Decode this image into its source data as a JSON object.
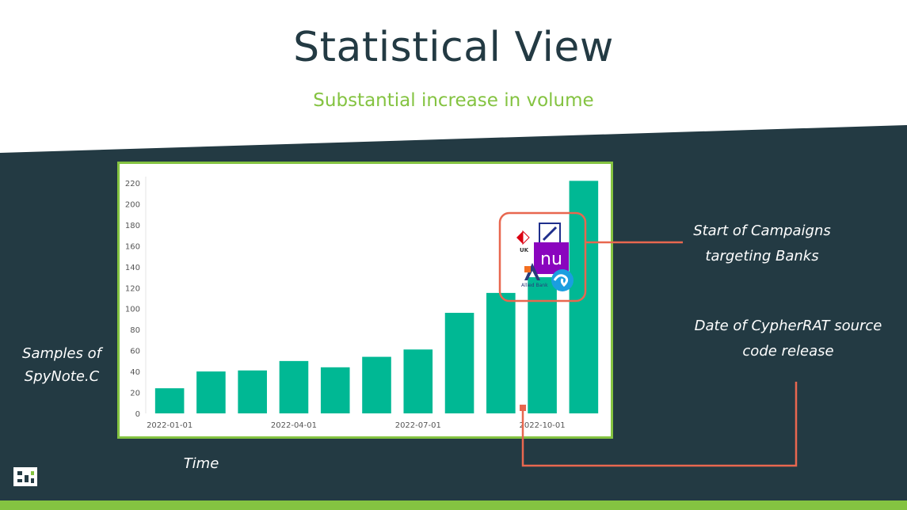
{
  "title": "Statistical View",
  "subtitle": "Substantial increase in volume",
  "annotations": {
    "campaign_line1": "Start of Campaigns",
    "campaign_line2": "targeting Banks",
    "cypher_line1": "Date of CypherRAT source",
    "cypher_line2": "code release",
    "ylabel_line1": "Samples of",
    "ylabel_line2": "SpyNote.C",
    "xlabel": "Time"
  },
  "bank_logos": {
    "hsbc_uk_text": "UK",
    "nu_text": "nu",
    "allied_text": "Allied Bank"
  },
  "colors": {
    "dark_panel": "#233a43",
    "accent_green": "#84c341",
    "bar": "#00b894",
    "annotation_line": "#e8674f"
  },
  "chart_data": {
    "type": "bar",
    "categories": [
      "2022-01",
      "2022-02",
      "2022-03",
      "2022-04",
      "2022-05",
      "2022-06",
      "2022-07",
      "2022-08",
      "2022-09",
      "2022-10",
      "2022-11"
    ],
    "values": [
      24,
      40,
      41,
      50,
      44,
      54,
      61,
      96,
      115,
      130,
      222
    ],
    "ylim": [
      0,
      220
    ],
    "yticks": [
      0,
      20,
      40,
      60,
      80,
      100,
      120,
      140,
      160,
      180,
      200,
      220
    ],
    "xtick_labels": [
      {
        "label": "2022-01-01",
        "index": 0
      },
      {
        "label": "2022-04-01",
        "index": 3
      },
      {
        "label": "2022-07-01",
        "index": 6
      },
      {
        "label": "2022-10-01",
        "index": 9
      }
    ],
    "grid": false,
    "legend": "none"
  }
}
